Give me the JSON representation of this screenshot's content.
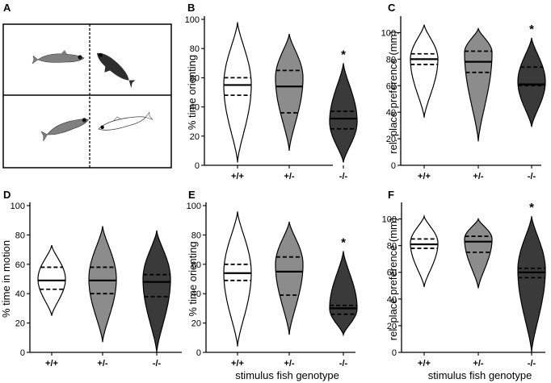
{
  "figure": {
    "schematic": {
      "letter": "A"
    },
    "colors": {
      "white": "#ffffff",
      "grey": "#8c8c8c",
      "dark": "#3a3a3a",
      "fish_grey": "#7f7f7f",
      "fish_dark": "#2e2e2e"
    }
  },
  "chart_data": [
    {
      "panel": "B",
      "type": "violin",
      "ylabel": "% time orienting",
      "xlabel": "",
      "ylim": [
        0,
        100
      ],
      "yticks": [
        0,
        20,
        40,
        60,
        80,
        100
      ],
      "categories": [
        "+/+",
        "+/-",
        "-/-"
      ],
      "series": [
        {
          "category": "+/+",
          "median": 55,
          "q1": 48,
          "q3": 60,
          "min": 2,
          "max": 98,
          "mode": 55,
          "fill": "white"
        },
        {
          "category": "+/-",
          "median": 54,
          "q1": 36,
          "q3": 65,
          "min": 10,
          "max": 90,
          "mode": 60,
          "fill": "grey"
        },
        {
          "category": "-/-",
          "median": 32,
          "q1": 25,
          "q3": 37,
          "min": 2,
          "max": 70,
          "mode": 30,
          "fill": "dark",
          "annotation": "*"
        }
      ]
    },
    {
      "panel": "C",
      "type": "violin",
      "ylabel": "rel. place preference (mm)",
      "xlabel": "",
      "ylim": [
        0,
        110
      ],
      "yticks": [
        0,
        20,
        40,
        60,
        80,
        100
      ],
      "categories": [
        "+/+",
        "+/-",
        "-/-"
      ],
      "series": [
        {
          "category": "+/+",
          "median": 80,
          "q1": 76,
          "q3": 84,
          "min": 36,
          "max": 106,
          "mode": 80,
          "fill": "white"
        },
        {
          "category": "+/-",
          "median": 78,
          "q1": 70,
          "q3": 86,
          "min": 18,
          "max": 103,
          "mode": 85,
          "fill": "grey"
        },
        {
          "category": "-/-",
          "median": 61,
          "q1": 60,
          "q3": 74,
          "min": 29,
          "max": 96,
          "mode": 63,
          "fill": "dark",
          "annotation": "*"
        }
      ]
    },
    {
      "panel": "D",
      "type": "violin",
      "ylabel": "% time in motion",
      "xlabel": "",
      "ylim": [
        0,
        100
      ],
      "yticks": [
        0,
        20,
        40,
        60,
        80,
        100
      ],
      "categories": [
        "+/+",
        "+/-",
        "-/-"
      ],
      "series": [
        {
          "category": "+/+",
          "median": 49,
          "q1": 43,
          "q3": 58,
          "min": 25,
          "max": 73,
          "mode": 50,
          "fill": "white"
        },
        {
          "category": "+/-",
          "median": 49,
          "q1": 40,
          "q3": 58,
          "min": 7,
          "max": 86,
          "mode": 50,
          "fill": "grey"
        },
        {
          "category": "-/-",
          "median": 48,
          "q1": 38,
          "q3": 53,
          "min": 0,
          "max": 83,
          "mode": 50,
          "fill": "dark"
        }
      ]
    },
    {
      "panel": "E",
      "type": "violin",
      "ylabel": "% time orienting",
      "xlabel": "stimulus fish genotype",
      "ylim": [
        0,
        100
      ],
      "yticks": [
        0,
        20,
        40,
        60,
        80,
        100
      ],
      "categories": [
        "+/+",
        "+/-",
        "-/-"
      ],
      "series": [
        {
          "category": "+/+",
          "median": 54,
          "q1": 49,
          "q3": 60,
          "min": 4,
          "max": 96,
          "mode": 54,
          "fill": "white"
        },
        {
          "category": "+/-",
          "median": 55,
          "q1": 39,
          "q3": 65,
          "min": 12,
          "max": 89,
          "mode": 60,
          "fill": "grey"
        },
        {
          "category": "-/-",
          "median": 30,
          "q1": 26,
          "q3": 32,
          "min": 12,
          "max": 69,
          "mode": 30,
          "fill": "dark",
          "annotation": "*"
        }
      ]
    },
    {
      "panel": "F",
      "type": "violin",
      "ylabel": "rel. place preference (mm)",
      "xlabel": "stimulus fish genotype",
      "ylim": [
        0,
        110
      ],
      "yticks": [
        0,
        20,
        40,
        60,
        80,
        100
      ],
      "categories": [
        "+/+",
        "+/-",
        "-/-"
      ],
      "series": [
        {
          "category": "+/+",
          "median": 81,
          "q1": 78,
          "q3": 85,
          "min": 49,
          "max": 102,
          "mode": 82,
          "fill": "white"
        },
        {
          "category": "+/-",
          "median": 83,
          "q1": 75,
          "q3": 87,
          "min": 48,
          "max": 100,
          "mode": 85,
          "fill": "grey"
        },
        {
          "category": "-/-",
          "median": 60,
          "q1": 56,
          "q3": 63,
          "min": 0,
          "max": 102,
          "mode": 62,
          "fill": "dark",
          "annotation": "*"
        }
      ]
    }
  ]
}
